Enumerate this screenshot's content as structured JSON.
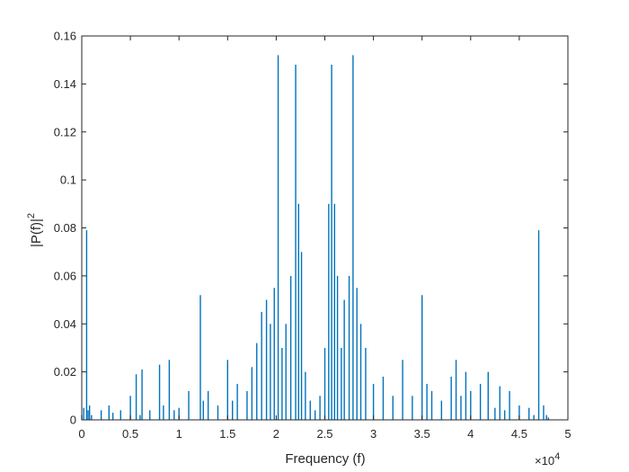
{
  "chart_data": {
    "type": "line",
    "xlabel": "Frequency (f)",
    "ylabel_base": "|P(f)|",
    "ylabel_sup": "2",
    "x_exponent_base": "×10",
    "x_exponent_power": "4",
    "xlim": [
      0,
      50000
    ],
    "ylim": [
      0,
      0.16
    ],
    "x_ticks": [
      0,
      5000,
      10000,
      15000,
      20000,
      25000,
      30000,
      35000,
      40000,
      45000,
      50000
    ],
    "x_tick_labels": [
      "0",
      "0.5",
      "1",
      "1.5",
      "2",
      "2.5",
      "3",
      "3.5",
      "4",
      "4.5",
      "5"
    ],
    "y_ticks": [
      0,
      0.02,
      0.04,
      0.06,
      0.08,
      0.1,
      0.12,
      0.14,
      0.16
    ],
    "y_tick_labels": [
      "0",
      "0.02",
      "0.04",
      "0.06",
      "0.08",
      "0.1",
      "0.12",
      "0.14",
      "0.16"
    ],
    "grid": false,
    "color": "#0072BD",
    "series": [
      {
        "x": [
          0,
          200,
          500,
          650,
          800,
          1000,
          2000,
          2800,
          3200,
          4000,
          5000,
          5600,
          6000,
          6200,
          7000,
          8000,
          8400,
          9000,
          9500,
          10000,
          11000,
          12200,
          12500,
          13000,
          14000,
          15000,
          15500,
          16000,
          17000,
          17500,
          18000,
          18500,
          19000,
          19400,
          19800,
          20200,
          20600,
          21000,
          21500,
          22000,
          22300,
          22600,
          23000,
          23500,
          24000,
          24500,
          25000,
          25400,
          25700,
          26000,
          26300,
          26700,
          27000,
          27500,
          27900,
          28300,
          28700,
          29200,
          30000,
          31000,
          32000,
          33000,
          34000,
          35000,
          35500,
          36000,
          37000,
          38000,
          38500,
          39000,
          39500,
          40000,
          41000,
          41800,
          42500,
          43000,
          43500,
          44000,
          45000,
          46000,
          46500,
          47000,
          47500,
          47800,
          48000
        ],
        "y": [
          0.002,
          0.005,
          0.079,
          0.004,
          0.006,
          0.002,
          0.004,
          0.006,
          0.003,
          0.004,
          0.01,
          0.019,
          0.002,
          0.021,
          0.004,
          0.023,
          0.006,
          0.025,
          0.004,
          0.005,
          0.012,
          0.052,
          0.008,
          0.012,
          0.006,
          0.025,
          0.008,
          0.015,
          0.012,
          0.022,
          0.032,
          0.045,
          0.05,
          0.04,
          0.055,
          0.152,
          0.03,
          0.04,
          0.06,
          0.148,
          0.09,
          0.07,
          0.02,
          0.008,
          0.004,
          0.01,
          0.03,
          0.09,
          0.148,
          0.09,
          0.06,
          0.03,
          0.05,
          0.06,
          0.152,
          0.055,
          0.04,
          0.03,
          0.015,
          0.018,
          0.01,
          0.025,
          0.01,
          0.052,
          0.015,
          0.012,
          0.008,
          0.018,
          0.025,
          0.01,
          0.02,
          0.012,
          0.015,
          0.02,
          0.005,
          0.014,
          0.004,
          0.012,
          0.006,
          0.005,
          0.002,
          0.079,
          0.006,
          0.002,
          0.001
        ]
      }
    ]
  }
}
